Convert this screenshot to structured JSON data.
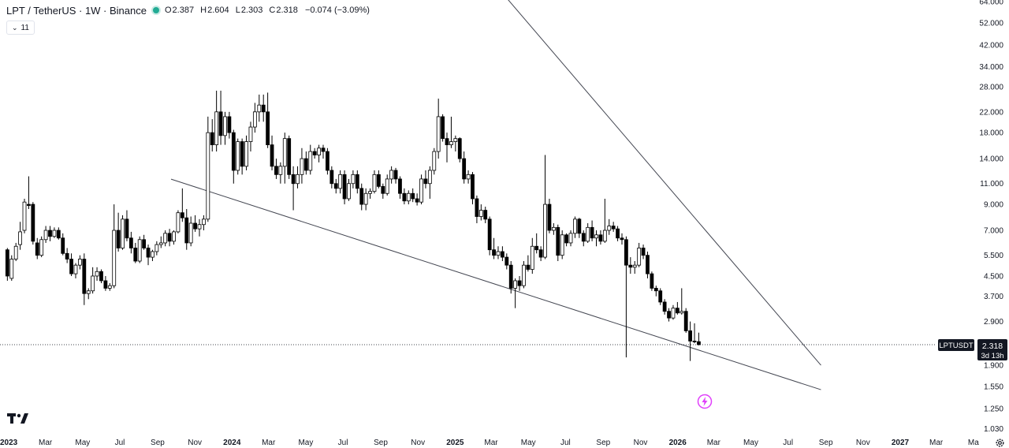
{
  "header": {
    "title": "LPT / TetherUS · 1W · Binance",
    "ohlc": [
      {
        "key": "O",
        "value": "2.387"
      },
      {
        "key": "H",
        "value": "2.604"
      },
      {
        "key": "L",
        "value": "2.303"
      },
      {
        "key": "C",
        "value": "2.318"
      },
      {
        "key": "",
        "value": "−0.074 (−3.09%)"
      }
    ],
    "indicator_count": "11"
  },
  "price_label": {
    "symbol": "LPTUSDT",
    "price": "2.318",
    "countdown": "3d 13h"
  },
  "colors": {
    "up": "#ffffff",
    "down": "#000000",
    "wick": "#000000",
    "label_bg": "#131722",
    "accent": "#e040fb",
    "status_dot": "#22ab94"
  },
  "icons": {
    "logo": "tradingview-logo-icon",
    "alert": "lightning-bolt-icon",
    "settings": "gear-icon"
  },
  "chart_data": {
    "type": "candlestick",
    "title": "LPT / TetherUS · 1W · Binance",
    "y_scale": "log",
    "y_ticks": [
      "64.000",
      "52.000",
      "42.000",
      "34.000",
      "28.000",
      "22.000",
      "18.000",
      "14.000",
      "11.000",
      "9.000",
      "7.000",
      "5.500",
      "4.500",
      "3.700",
      "2.900",
      "2.318",
      "1.900",
      "1.550",
      "1.250",
      "1.030"
    ],
    "x_ticks": [
      "2023",
      "Mar",
      "May",
      "Jul",
      "Sep",
      "Nov",
      "2024",
      "Mar",
      "May",
      "Jul",
      "Sep",
      "Nov",
      "2025",
      "Mar",
      "May",
      "Jul",
      "Sep",
      "Nov",
      "2026",
      "Mar",
      "May",
      "Jul",
      "Sep",
      "Nov",
      "2027",
      "Mar",
      "Ma"
    ],
    "x_range": [
      "2023-01-01",
      "2027-04-15"
    ],
    "last_price": 2.318,
    "candles": [
      [
        "2022-12-26",
        5.8,
        5.9,
        4.3,
        4.5
      ],
      [
        "2023-01-02",
        4.4,
        5.5,
        4.3,
        5.3
      ],
      [
        "2023-01-09",
        5.3,
        6.2,
        5.2,
        6.0
      ],
      [
        "2023-01-16",
        6.1,
        7.6,
        5.8,
        6.9
      ],
      [
        "2023-01-23",
        7.0,
        9.5,
        6.8,
        9.2
      ],
      [
        "2023-01-30",
        9.0,
        11.8,
        8.6,
        8.9
      ],
      [
        "2023-02-06",
        9.0,
        9.2,
        6.1,
        6.3
      ],
      [
        "2023-02-13",
        6.2,
        6.5,
        5.3,
        5.5
      ],
      [
        "2023-02-20",
        5.5,
        6.6,
        5.4,
        6.4
      ],
      [
        "2023-02-27",
        6.4,
        7.3,
        6.2,
        7.0
      ],
      [
        "2023-03-06",
        7.0,
        7.3,
        6.3,
        6.6
      ],
      [
        "2023-03-13",
        6.6,
        7.2,
        6.5,
        7.0
      ],
      [
        "2023-03-20",
        7.0,
        7.2,
        6.4,
        6.5
      ],
      [
        "2023-03-27",
        6.5,
        6.8,
        5.5,
        5.6
      ],
      [
        "2023-04-03",
        5.6,
        5.9,
        5.1,
        5.3
      ],
      [
        "2023-04-10",
        5.3,
        5.6,
        4.5,
        4.6
      ],
      [
        "2023-04-17",
        4.6,
        5.1,
        4.4,
        5.0
      ],
      [
        "2023-04-24",
        5.0,
        5.5,
        4.8,
        5.3
      ],
      [
        "2023-05-01",
        5.3,
        5.6,
        3.4,
        3.8
      ],
      [
        "2023-05-08",
        3.8,
        4.0,
        3.6,
        3.9
      ],
      [
        "2023-05-15",
        3.9,
        4.9,
        3.8,
        4.5
      ],
      [
        "2023-05-22",
        4.5,
        4.9,
        4.3,
        4.7
      ],
      [
        "2023-05-29",
        4.7,
        4.8,
        4.2,
        4.3
      ],
      [
        "2023-06-05",
        4.3,
        4.5,
        3.9,
        4.0
      ],
      [
        "2023-06-12",
        4.0,
        4.2,
        3.9,
        4.1
      ],
      [
        "2023-06-19",
        4.1,
        9.0,
        4.0,
        7.0
      ],
      [
        "2023-06-26",
        7.0,
        8.3,
        5.7,
        5.9
      ],
      [
        "2023-07-03",
        5.9,
        8.1,
        5.8,
        7.8
      ],
      [
        "2023-07-10",
        7.8,
        8.5,
        6.3,
        6.5
      ],
      [
        "2023-07-17",
        6.5,
        6.9,
        5.6,
        5.9
      ],
      [
        "2023-07-24",
        5.9,
        6.2,
        5.1,
        5.2
      ],
      [
        "2023-07-31",
        5.2,
        6.6,
        5.1,
        6.4
      ],
      [
        "2023-08-07",
        6.4,
        6.7,
        5.8,
        5.9
      ],
      [
        "2023-08-14",
        5.9,
        6.1,
        5.0,
        5.4
      ],
      [
        "2023-08-21",
        5.4,
        5.8,
        5.2,
        5.7
      ],
      [
        "2023-08-28",
        5.7,
        6.3,
        5.5,
        6.1
      ],
      [
        "2023-09-04",
        6.1,
        6.6,
        5.9,
        6.2
      ],
      [
        "2023-09-11",
        6.2,
        7.0,
        6.0,
        6.8
      ],
      [
        "2023-09-18",
        6.8,
        7.1,
        6.0,
        6.3
      ],
      [
        "2023-09-25",
        6.3,
        7.0,
        6.1,
        6.9
      ],
      [
        "2023-10-02",
        6.9,
        8.5,
        6.8,
        8.3
      ],
      [
        "2023-10-09",
        8.3,
        10.5,
        7.6,
        7.9
      ],
      [
        "2023-10-16",
        7.9,
        8.6,
        5.8,
        6.2
      ],
      [
        "2023-10-23",
        6.2,
        8.0,
        6.0,
        7.5
      ],
      [
        "2023-10-30",
        7.5,
        8.1,
        6.9,
        7.1
      ],
      [
        "2023-11-06",
        7.1,
        7.8,
        6.6,
        7.4
      ],
      [
        "2023-11-13",
        7.4,
        8.1,
        7.0,
        7.8
      ],
      [
        "2023-11-20",
        7.8,
        21.0,
        7.6,
        18.0
      ],
      [
        "2023-11-27",
        18.0,
        20.5,
        15.0,
        16.0
      ],
      [
        "2023-12-04",
        16.0,
        27.0,
        15.0,
        22.0
      ],
      [
        "2023-12-11",
        22.0,
        27.0,
        16.0,
        17.5
      ],
      [
        "2023-12-18",
        17.5,
        22.0,
        16.0,
        21.0
      ],
      [
        "2023-12-25",
        21.0,
        22.0,
        17.0,
        18.0
      ],
      [
        "2024-01-01",
        18.0,
        18.5,
        11.0,
        12.5
      ],
      [
        "2024-01-08",
        12.5,
        17.0,
        12.0,
        16.5
      ],
      [
        "2024-01-15",
        16.5,
        17.0,
        12.0,
        13.0
      ],
      [
        "2024-01-22",
        13.0,
        17.5,
        12.5,
        16.5
      ],
      [
        "2024-01-29",
        16.5,
        20.0,
        15.0,
        19.0
      ],
      [
        "2024-02-05",
        19.0,
        24.0,
        18.0,
        22.0
      ],
      [
        "2024-02-12",
        22.0,
        26.0,
        20.0,
        23.5
      ],
      [
        "2024-02-19",
        23.5,
        26.0,
        20.0,
        22.0
      ],
      [
        "2024-02-26",
        22.0,
        26.5,
        15.5,
        16.0
      ],
      [
        "2024-03-04",
        16.0,
        17.5,
        12.5,
        13.0
      ],
      [
        "2024-03-11",
        13.0,
        14.0,
        11.5,
        12.0
      ],
      [
        "2024-03-18",
        12.0,
        13.5,
        11.0,
        13.0
      ],
      [
        "2024-03-25",
        13.0,
        18.0,
        11.0,
        17.0
      ],
      [
        "2024-04-01",
        17.0,
        17.5,
        11.5,
        12.0
      ],
      [
        "2024-04-08",
        12.0,
        13.0,
        8.5,
        11.0
      ],
      [
        "2024-04-15",
        11.0,
        13.0,
        10.5,
        12.0
      ],
      [
        "2024-04-22",
        12.0,
        15.5,
        11.0,
        14.0
      ],
      [
        "2024-04-29",
        14.0,
        15.0,
        12.0,
        12.5
      ],
      [
        "2024-05-06",
        12.5,
        16.0,
        12.0,
        15.0
      ],
      [
        "2024-05-13",
        15.0,
        15.5,
        14.0,
        14.5
      ],
      [
        "2024-05-20",
        14.5,
        16.0,
        13.5,
        15.5
      ],
      [
        "2024-05-27",
        15.5,
        16.0,
        14.0,
        15.0
      ],
      [
        "2024-06-03",
        15.0,
        15.5,
        12.0,
        12.5
      ],
      [
        "2024-06-10",
        12.5,
        13.0,
        10.5,
        11.0
      ],
      [
        "2024-06-17",
        11.0,
        11.5,
        10.0,
        10.5
      ],
      [
        "2024-06-24",
        10.5,
        12.5,
        10.0,
        12.0
      ],
      [
        "2024-07-01",
        12.0,
        12.5,
        9.0,
        9.5
      ],
      [
        "2024-07-08",
        9.5,
        11.5,
        9.3,
        11.0
      ],
      [
        "2024-07-15",
        11.0,
        12.5,
        10.5,
        12.0
      ],
      [
        "2024-07-22",
        12.0,
        12.5,
        10.0,
        10.5
      ],
      [
        "2024-07-29",
        10.5,
        11.0,
        8.5,
        9.0
      ],
      [
        "2024-08-05",
        9.0,
        10.5,
        8.5,
        10.0
      ],
      [
        "2024-08-12",
        10.0,
        10.5,
        9.5,
        10.2
      ],
      [
        "2024-08-19",
        10.2,
        12.5,
        10.0,
        12.0
      ],
      [
        "2024-08-26",
        12.0,
        12.5,
        10.5,
        10.7
      ],
      [
        "2024-09-02",
        10.7,
        11.0,
        9.5,
        10.0
      ],
      [
        "2024-09-09",
        10.0,
        12.0,
        9.8,
        11.5
      ],
      [
        "2024-09-16",
        11.5,
        13.0,
        11.0,
        12.5
      ],
      [
        "2024-09-23",
        12.5,
        12.8,
        11.0,
        11.5
      ],
      [
        "2024-09-30",
        11.5,
        11.8,
        9.5,
        10.0
      ],
      [
        "2024-10-07",
        10.0,
        10.5,
        9.0,
        9.3
      ],
      [
        "2024-10-14",
        9.3,
        10.3,
        9.0,
        10.0
      ],
      [
        "2024-10-21",
        10.0,
        10.5,
        9.2,
        9.5
      ],
      [
        "2024-10-28",
        9.5,
        10.0,
        8.9,
        9.2
      ],
      [
        "2024-11-04",
        9.2,
        12.0,
        9.0,
        11.5
      ],
      [
        "2024-11-11",
        11.5,
        12.5,
        10.5,
        11.0
      ],
      [
        "2024-11-18",
        11.0,
        13.0,
        9.5,
        12.5
      ],
      [
        "2024-11-25",
        12.5,
        15.5,
        12.0,
        15.0
      ],
      [
        "2024-12-02",
        15.0,
        25.0,
        14.0,
        21.0
      ],
      [
        "2024-12-09",
        21.0,
        21.5,
        16.5,
        17.0
      ],
      [
        "2024-12-16",
        17.0,
        18.0,
        13.5,
        16.0
      ],
      [
        "2024-12-23",
        16.0,
        21.0,
        15.5,
        16.5
      ],
      [
        "2024-12-30",
        16.5,
        17.5,
        15.0,
        17.0
      ],
      [
        "2025-01-06",
        17.0,
        17.2,
        13.5,
        14.0
      ],
      [
        "2025-01-13",
        14.0,
        15.0,
        11.0,
        11.5
      ],
      [
        "2025-01-20",
        11.5,
        12.5,
        11.0,
        12.0
      ],
      [
        "2025-01-27",
        12.0,
        12.3,
        9.0,
        9.5
      ],
      [
        "2025-02-03",
        9.5,
        9.8,
        7.5,
        8.0
      ],
      [
        "2025-02-10",
        8.0,
        9.0,
        7.7,
        8.5
      ],
      [
        "2025-02-17",
        8.5,
        8.8,
        7.5,
        7.8
      ],
      [
        "2025-02-24",
        7.8,
        8.0,
        5.5,
        5.8
      ],
      [
        "2025-03-03",
        5.8,
        6.5,
        5.3,
        5.5
      ],
      [
        "2025-03-10",
        5.5,
        6.0,
        5.3,
        5.7
      ],
      [
        "2025-03-17",
        5.7,
        6.0,
        5.2,
        5.4
      ],
      [
        "2025-03-24",
        5.4,
        5.6,
        4.8,
        5.0
      ],
      [
        "2025-03-31",
        5.0,
        5.2,
        3.8,
        4.0
      ],
      [
        "2025-04-07",
        4.0,
        4.4,
        3.3,
        4.3
      ],
      [
        "2025-04-14",
        4.3,
        4.5,
        3.9,
        4.1
      ],
      [
        "2025-04-21",
        4.1,
        5.2,
        4.0,
        5.0
      ],
      [
        "2025-04-28",
        5.0,
        5.5,
        4.7,
        4.8
      ],
      [
        "2025-05-05",
        4.8,
        6.5,
        4.6,
        6.0
      ],
      [
        "2025-05-12",
        6.0,
        6.8,
        5.6,
        5.8
      ],
      [
        "2025-05-19",
        5.8,
        6.0,
        5.2,
        5.4
      ],
      [
        "2025-05-26",
        5.4,
        14.5,
        5.3,
        9.0
      ],
      [
        "2025-06-02",
        9.0,
        9.5,
        6.8,
        7.0
      ],
      [
        "2025-06-09",
        7.0,
        7.5,
        6.7,
        7.2
      ],
      [
        "2025-06-16",
        7.2,
        7.4,
        5.2,
        5.5
      ],
      [
        "2025-06-23",
        5.5,
        7.0,
        5.3,
        6.7
      ],
      [
        "2025-06-30",
        6.7,
        6.8,
        6.0,
        6.2
      ],
      [
        "2025-07-07",
        6.2,
        7.0,
        6.0,
        6.8
      ],
      [
        "2025-07-14",
        6.8,
        8.0,
        6.5,
        7.8
      ],
      [
        "2025-07-21",
        7.8,
        7.9,
        6.5,
        6.8
      ],
      [
        "2025-07-28",
        6.8,
        7.0,
        6.0,
        6.3
      ],
      [
        "2025-08-04",
        6.3,
        7.5,
        6.2,
        7.2
      ],
      [
        "2025-08-11",
        7.2,
        7.7,
        6.3,
        6.5
      ],
      [
        "2025-08-18",
        6.5,
        7.0,
        6.0,
        6.7
      ],
      [
        "2025-08-25",
        6.7,
        7.0,
        6.1,
        6.3
      ],
      [
        "2025-09-01",
        6.3,
        9.5,
        6.2,
        7.0
      ],
      [
        "2025-09-08",
        7.0,
        7.8,
        6.7,
        7.3
      ],
      [
        "2025-09-15",
        7.3,
        7.6,
        6.9,
        7.1
      ],
      [
        "2025-09-22",
        7.1,
        7.3,
        6.3,
        6.5
      ],
      [
        "2025-09-29",
        6.5,
        6.8,
        6.1,
        6.4
      ],
      [
        "2025-10-06",
        6.4,
        6.6,
        2.05,
        5.0
      ],
      [
        "2025-10-13",
        5.0,
        5.4,
        4.6,
        4.9
      ],
      [
        "2025-10-20",
        4.9,
        5.2,
        4.6,
        5.0
      ],
      [
        "2025-10-27",
        5.0,
        6.2,
        4.9,
        5.9
      ],
      [
        "2025-11-03",
        5.9,
        6.1,
        5.3,
        5.5
      ],
      [
        "2025-11-10",
        5.5,
        5.7,
        4.4,
        4.6
      ],
      [
        "2025-11-17",
        4.6,
        4.7,
        3.9,
        4.0
      ],
      [
        "2025-11-24",
        4.0,
        4.1,
        3.7,
        3.9
      ],
      [
        "2025-12-01",
        3.9,
        4.0,
        3.4,
        3.5
      ],
      [
        "2025-12-08",
        3.5,
        3.6,
        3.1,
        3.2
      ],
      [
        "2025-12-15",
        3.2,
        3.3,
        2.9,
        3.0
      ],
      [
        "2025-12-22",
        3.0,
        3.4,
        2.95,
        3.3
      ],
      [
        "2025-12-29",
        3.3,
        3.5,
        3.1,
        3.15
      ],
      [
        "2026-01-05",
        3.15,
        4.0,
        3.1,
        3.2
      ],
      [
        "2026-01-12",
        3.2,
        3.3,
        2.6,
        2.65
      ],
      [
        "2026-01-19",
        2.65,
        2.9,
        1.98,
        2.4
      ],
      [
        "2026-01-26",
        2.4,
        2.85,
        2.35,
        2.387
      ],
      [
        "2026-02-02",
        2.387,
        2.604,
        2.303,
        2.318
      ]
    ],
    "trendlines": [
      {
        "from": [
          "2024-02-26",
          1000
        ],
        "to": [
          "2026-08-24",
          1.9
        ]
      },
      {
        "from": [
          "2023-07-24",
          12.9
        ],
        "to": [
          "2026-08-24",
          1.5
        ]
      }
    ]
  }
}
